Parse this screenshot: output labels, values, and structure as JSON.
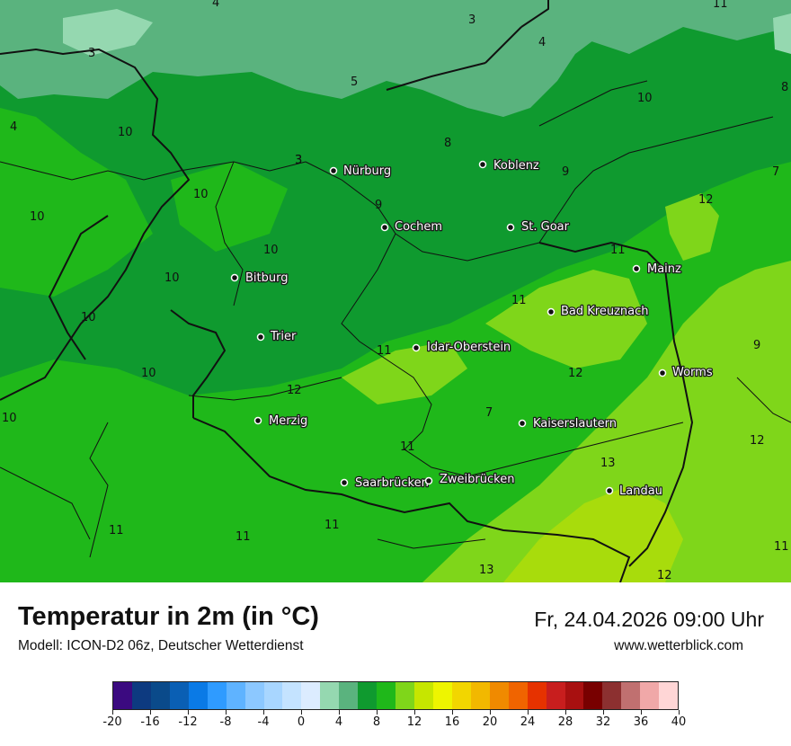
{
  "header": {
    "title": "Temperatur in 2m (in °C)",
    "model": "Modell: ICON-D2 06z, Deutscher Wetterdienst",
    "datetime": "Fr, 24.04.2026 09:00 Uhr",
    "website": "www.wetterblick.com"
  },
  "cities": [
    {
      "name": "Nürburg"
    },
    {
      "name": "Koblenz"
    },
    {
      "name": "Cochem"
    },
    {
      "name": "St. Goar"
    },
    {
      "name": "Mainz"
    },
    {
      "name": "Bitburg"
    },
    {
      "name": "Bad Kreuznach"
    },
    {
      "name": "Trier"
    },
    {
      "name": "Idar-Oberstein"
    },
    {
      "name": "Worms"
    },
    {
      "name": "Merzig"
    },
    {
      "name": "Kaiserslautern"
    },
    {
      "name": "Saarbrücken"
    },
    {
      "name": "Zweibrücken"
    },
    {
      "name": "Landau"
    }
  ],
  "isoline_labels": [
    "4",
    "3",
    "3",
    "11",
    "4",
    "3",
    "5",
    "10",
    "8",
    "4",
    "10",
    "8",
    "9",
    "7",
    "3",
    "10",
    "12",
    "10",
    "9",
    "10",
    "11",
    "10",
    "11",
    "10",
    "11",
    "9",
    "12",
    "10",
    "12",
    "7",
    "12",
    "10",
    "11",
    "13",
    "11",
    "11",
    "11",
    "11",
    "13",
    "12"
  ],
  "legend": {
    "min": -20,
    "max": 40,
    "step": 2,
    "colors": [
      "#3b0a80",
      "#0d3a80",
      "#0a4a8a",
      "#0a5fb4",
      "#0a7ae6",
      "#2f9bff",
      "#5fb3ff",
      "#8cc8ff",
      "#a8d6ff",
      "#c4e3ff",
      "#dcecff",
      "#95d8b0",
      "#5ab37e",
      "#0f9a2f",
      "#1fb81a",
      "#7fd61a",
      "#c6e600",
      "#eef500",
      "#f2d600",
      "#f2b800",
      "#f08a00",
      "#f06400",
      "#e63200",
      "#c81e1e",
      "#a81010",
      "#780000",
      "#8c3030",
      "#c07070",
      "#f0a8a8",
      "#ffd6d6"
    ],
    "tick_labels": [
      "-20",
      "-16",
      "-12",
      "-8",
      "-4",
      "0",
      "4",
      "8",
      "12",
      "16",
      "20",
      "24",
      "28",
      "32",
      "36",
      "40"
    ]
  }
}
